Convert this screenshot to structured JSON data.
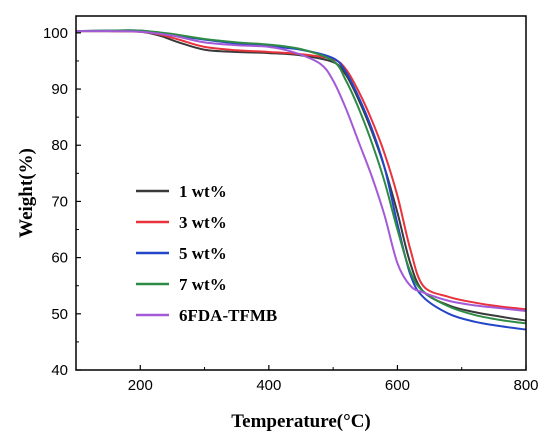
{
  "chart_data": {
    "type": "line",
    "title": "",
    "xlabel": "Temperature(°C)",
    "ylabel": "Weight(%)",
    "xlim": [
      100,
      800
    ],
    "ylim": [
      40,
      103
    ],
    "xticks": [
      200,
      400,
      600,
      800
    ],
    "yticks": [
      40,
      50,
      60,
      70,
      80,
      90,
      100
    ],
    "grid": false,
    "legend_placement": "center-left",
    "series": [
      {
        "name": "1 wt%",
        "color": "#3a3a3a",
        "x": [
          100,
          150,
          200,
          230,
          260,
          300,
          350,
          400,
          450,
          500,
          520,
          540,
          560,
          580,
          600,
          620,
          640,
          680,
          720,
          760,
          800
        ],
        "y": [
          100.3,
          100.3,
          100.2,
          99.5,
          98.3,
          97.0,
          96.6,
          96.4,
          96.0,
          94.8,
          92.5,
          88.0,
          82.5,
          76.0,
          68.0,
          59.0,
          54.0,
          51.5,
          50.3,
          49.5,
          48.8
        ]
      },
      {
        "name": "3 wt%",
        "color": "#e8333d",
        "x": [
          100,
          150,
          200,
          230,
          260,
          300,
          350,
          400,
          450,
          500,
          520,
          540,
          560,
          580,
          600,
          620,
          640,
          680,
          720,
          760,
          800
        ],
        "y": [
          100.3,
          100.3,
          100.2,
          99.7,
          98.8,
          97.5,
          96.9,
          96.6,
          96.2,
          95.3,
          93.5,
          89.5,
          84.5,
          78.5,
          71.0,
          61.5,
          55.0,
          53.0,
          52.0,
          51.3,
          50.8
        ]
      },
      {
        "name": "5 wt%",
        "color": "#2346c8",
        "x": [
          100,
          150,
          200,
          250,
          300,
          350,
          400,
          450,
          500,
          520,
          540,
          560,
          580,
          600,
          620,
          640,
          680,
          720,
          760,
          800
        ],
        "y": [
          100.3,
          100.4,
          100.4,
          99.6,
          98.8,
          98.1,
          97.6,
          97.0,
          95.5,
          93.0,
          88.5,
          83.0,
          76.0,
          66.0,
          57.0,
          53.0,
          50.0,
          48.6,
          47.8,
          47.2
        ]
      },
      {
        "name": "7 wt%",
        "color": "#2e8b45",
        "x": [
          100,
          150,
          200,
          250,
          300,
          350,
          400,
          450,
          500,
          520,
          540,
          560,
          580,
          600,
          620,
          640,
          680,
          720,
          760,
          800
        ],
        "y": [
          100.3,
          100.4,
          100.4,
          99.8,
          98.9,
          98.3,
          97.9,
          97.1,
          95.0,
          91.5,
          86.5,
          80.5,
          73.5,
          65.0,
          57.5,
          54.0,
          51.3,
          49.8,
          48.9,
          48.3
        ]
      },
      {
        "name": "6FDA-TFMB",
        "color": "#a35ad8",
        "x": [
          100,
          150,
          200,
          250,
          300,
          350,
          400,
          440,
          480,
          500,
          520,
          540,
          560,
          580,
          600,
          620,
          640,
          680,
          720,
          760,
          800
        ],
        "y": [
          100.3,
          100.3,
          100.2,
          99.5,
          98.3,
          97.8,
          97.5,
          96.5,
          94.5,
          91.5,
          86.5,
          80.5,
          74.5,
          67.5,
          59.0,
          55.0,
          53.8,
          52.3,
          51.5,
          51.0,
          50.5
        ]
      }
    ]
  }
}
